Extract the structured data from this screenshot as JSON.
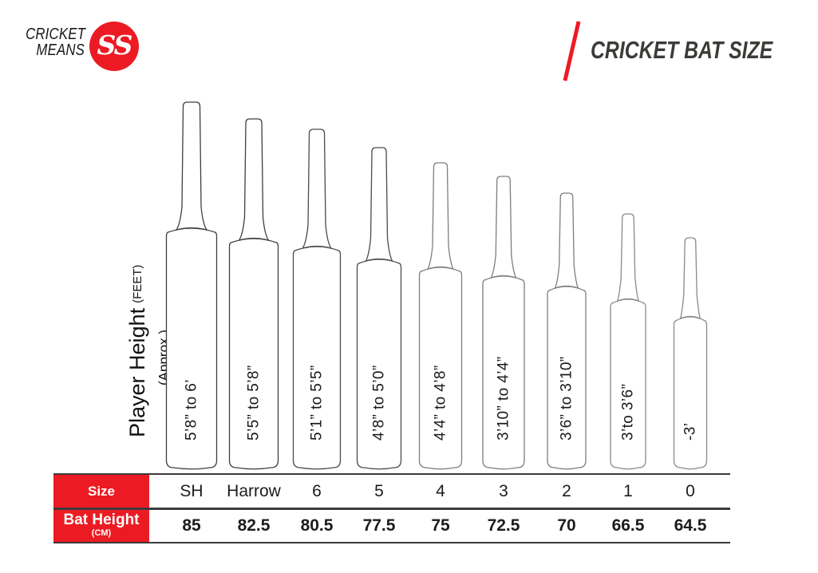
{
  "header": {
    "logo_line1": "CRICKET",
    "logo_line2": "MEANS",
    "logo_badge": "SS",
    "title": "CRICKET BAT SIZE"
  },
  "axis_label": {
    "main": "Player Height",
    "unit": "(FEET)",
    "note": "(Approx.)"
  },
  "table_labels": {
    "size": "Size",
    "bat_height": "Bat Height",
    "bat_height_unit": "(CM)"
  },
  "chart_data": {
    "type": "bar",
    "title": "Cricket Bat Size",
    "xlabel": "Size",
    "ylabel": "Player Height (FEET) (Approx.)",
    "legend_position": "none",
    "grid": false,
    "categories": [
      "SH",
      "Harrow",
      "6",
      "5",
      "4",
      "3",
      "2",
      "1",
      "0"
    ],
    "series": [
      {
        "name": "Player Height (FEET) (Approx.)",
        "values": [
          "5’8” to 6’",
          "5’5” to 5’8”",
          "5’1” to 5’5”",
          "4’8” to 5’0”",
          "4’4” to 4’8”",
          "3’10” to 4’4”",
          "3’6” to 3’10”",
          "3’to 3’6”",
          "-3’"
        ]
      },
      {
        "name": "Bat Height (CM)",
        "values": [
          85,
          82.5,
          80.5,
          77.5,
          75,
          72.5,
          70,
          66.5,
          64.5
        ]
      }
    ]
  },
  "colors": {
    "accent_red": "#ec1b23",
    "title_color": "#3d3b38",
    "table_line": "#3b3b3b",
    "bat_fill": "#ffffff",
    "label_color": "#1a1a1a"
  }
}
